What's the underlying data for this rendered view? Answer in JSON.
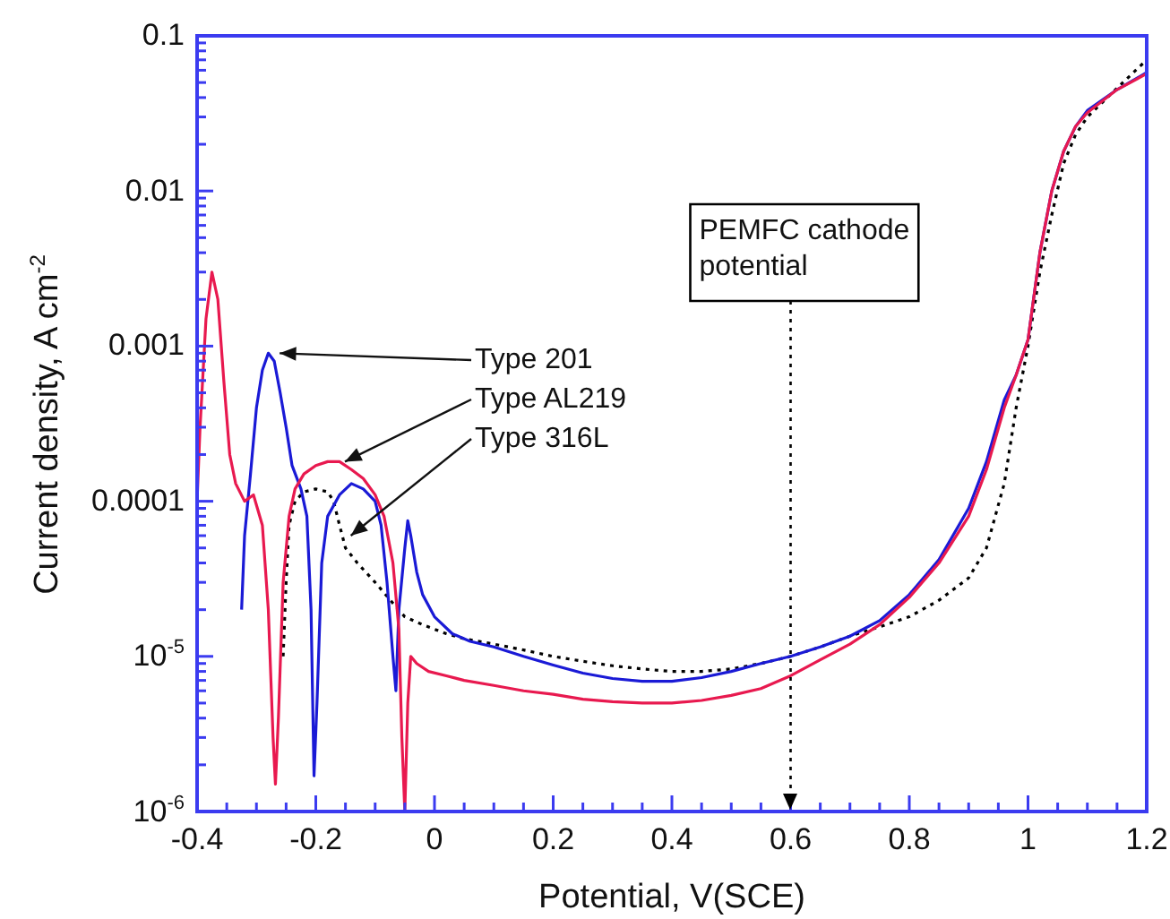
{
  "chart_data": {
    "type": "line",
    "xlabel": "Potential, V(SCE)",
    "ylabel": "Current density, A cm$^{-2}$",
    "log": "y",
    "grid": false,
    "legend": false,
    "xlim": [
      -0.4,
      1.2
    ],
    "ylim": [
      1e-06,
      0.1
    ],
    "xticks": [
      -0.4,
      {
        "value": -0.35,
        "label": null
      },
      {
        "value": -0.3,
        "label": null
      },
      {
        "value": -0.25,
        "label": null
      },
      -0.2,
      {
        "value": -0.15,
        "label": null
      },
      {
        "value": -0.1,
        "label": null
      },
      {
        "value": -0.05,
        "label": null
      },
      0,
      {
        "value": 0.05,
        "label": null
      },
      {
        "value": 0.1,
        "label": null
      },
      {
        "value": 0.15,
        "label": null
      },
      0.2,
      {
        "value": 0.25,
        "label": null
      },
      {
        "value": 0.3,
        "label": null
      },
      {
        "value": 0.35,
        "label": null
      },
      0.4,
      {
        "value": 0.45,
        "label": null
      },
      {
        "value": 0.5,
        "label": null
      },
      {
        "value": 0.55,
        "label": null
      },
      0.6,
      {
        "value": 0.65,
        "label": null
      },
      {
        "value": 0.7,
        "label": null
      },
      {
        "value": 0.75,
        "label": null
      },
      0.8,
      {
        "value": 0.85,
        "label": null
      },
      {
        "value": 0.9,
        "label": null
      },
      {
        "value": 0.95,
        "label": null
      },
      1,
      {
        "value": 1.05,
        "label": null
      },
      {
        "value": 1.1,
        "label": null
      },
      {
        "value": 1.15,
        "label": null
      },
      1.2
    ],
    "yticks": [
      {
        "value": 1e-06,
        "label": "10$^{-6}$"
      },
      {
        "value": 2e-06,
        "label": null
      },
      {
        "value": 3e-06,
        "label": null
      },
      {
        "value": 4e-06,
        "label": null
      },
      {
        "value": 5e-06,
        "label": null
      },
      {
        "value": 6e-06,
        "label": null
      },
      {
        "value": 7e-06,
        "label": null
      },
      {
        "value": 8e-06,
        "label": null
      },
      {
        "value": 9e-06,
        "label": null
      },
      {
        "value": 1e-05,
        "label": "10$^{-5}$"
      },
      {
        "value": 2e-05,
        "label": null
      },
      {
        "value": 3e-05,
        "label": null
      },
      {
        "value": 4e-05,
        "label": null
      },
      {
        "value": 5e-05,
        "label": null
      },
      {
        "value": 6e-05,
        "label": null
      },
      {
        "value": 7e-05,
        "label": null
      },
      {
        "value": 8e-05,
        "label": null
      },
      {
        "value": 9e-05,
        "label": null
      },
      0.0001,
      {
        "value": 0.0002,
        "label": null
      },
      {
        "value": 0.0003,
        "label": null
      },
      {
        "value": 0.0004,
        "label": null
      },
      {
        "value": 0.0005,
        "label": null
      },
      {
        "value": 0.0006,
        "label": null
      },
      {
        "value": 0.0007,
        "label": null
      },
      {
        "value": 0.0008,
        "label": null
      },
      {
        "value": 0.0009,
        "label": null
      },
      0.001,
      {
        "value": 0.002,
        "label": null
      },
      {
        "value": 0.003,
        "label": null
      },
      {
        "value": 0.004,
        "label": null
      },
      {
        "value": 0.005,
        "label": null
      },
      {
        "value": 0.006,
        "label": null
      },
      {
        "value": 0.007,
        "label": null
      },
      {
        "value": 0.008,
        "label": null
      },
      {
        "value": 0.009,
        "label": null
      },
      0.01,
      {
        "value": 0.02,
        "label": null
      },
      {
        "value": 0.03,
        "label": null
      },
      {
        "value": 0.04,
        "label": null
      },
      {
        "value": 0.05,
        "label": null
      },
      {
        "value": 0.06,
        "label": null
      },
      {
        "value": 0.07,
        "label": null
      },
      {
        "value": 0.08,
        "label": null
      },
      {
        "value": 0.09,
        "label": null
      },
      0.1
    ],
    "series": [
      {
        "color": "#e8194f",
        "x": [
          -0.4,
          -0.395,
          -0.385,
          -0.375,
          -0.365,
          -0.355,
          -0.345,
          -0.335,
          -0.32,
          -0.305,
          -0.29,
          -0.28,
          -0.272,
          -0.268,
          -0.263,
          -0.255,
          -0.245,
          -0.235,
          -0.22,
          -0.2,
          -0.18,
          -0.16,
          -0.14,
          -0.12,
          -0.1,
          -0.085,
          -0.07,
          -0.06,
          -0.055,
          -0.05,
          -0.045,
          -0.04,
          -0.03,
          -0.01,
          0.02,
          0.05,
          0.1,
          0.15,
          0.2,
          0.25,
          0.3,
          0.35,
          0.4,
          0.45,
          0.5,
          0.55,
          0.6,
          0.65,
          0.7,
          0.75,
          0.8,
          0.85,
          0.9,
          0.93,
          0.96,
          0.98,
          1.0,
          1.02,
          1.04,
          1.06,
          1.08,
          1.1,
          1.15,
          1.2
        ],
        "values": [
          0.0001,
          0.0003,
          0.0015,
          0.003,
          0.002,
          0.0006,
          0.0002,
          0.00013,
          0.0001,
          0.00011,
          7e-05,
          2e-05,
          3e-06,
          1.5e-06,
          4e-06,
          3e-05,
          8e-05,
          0.00012,
          0.00015,
          0.00017,
          0.00018,
          0.00018,
          0.00016,
          0.00014,
          0.00011,
          8e-05,
          4e-05,
          1.5e-05,
          3e-06,
          1e-06,
          5e-06,
          1e-05,
          9e-06,
          8e-06,
          7.5e-06,
          7e-06,
          6.5e-06,
          6e-06,
          5.7e-06,
          5.3e-06,
          5.1e-06,
          5e-06,
          5e-06,
          5.2e-06,
          5.6e-06,
          6.2e-06,
          7.5e-06,
          9.5e-06,
          1.2e-05,
          1.6e-05,
          2.4e-05,
          4e-05,
          8e-05,
          0.00016,
          0.0004,
          0.00065,
          0.0011,
          0.004,
          0.01,
          0.018,
          0.026,
          0.032,
          0.045,
          0.057
        ]
      },
      {
        "color": "#1a1ad6",
        "x": [
          -0.325,
          -0.32,
          -0.31,
          -0.3,
          -0.29,
          -0.28,
          -0.27,
          -0.26,
          -0.25,
          -0.24,
          -0.225,
          -0.215,
          -0.208,
          -0.203,
          -0.198,
          -0.19,
          -0.18,
          -0.16,
          -0.14,
          -0.12,
          -0.1,
          -0.09,
          -0.08,
          -0.07,
          -0.065,
          -0.06,
          -0.05,
          -0.045,
          -0.04,
          -0.03,
          -0.02,
          0,
          0.03,
          0.06,
          0.1,
          0.15,
          0.2,
          0.25,
          0.3,
          0.35,
          0.4,
          0.45,
          0.5,
          0.55,
          0.6,
          0.65,
          0.7,
          0.75,
          0.8,
          0.85,
          0.9,
          0.93,
          0.96,
          0.98,
          1.0,
          1.02,
          1.04,
          1.06,
          1.08,
          1.1,
          1.15,
          1.2
        ],
        "values": [
          2e-05,
          6e-05,
          0.00015,
          0.0004,
          0.0007,
          0.0009,
          0.0008,
          0.0005,
          0.0003,
          0.00017,
          0.00012,
          8e-05,
          2e-05,
          1.7e-06,
          5e-06,
          4e-05,
          8e-05,
          0.00011,
          0.00013,
          0.00012,
          0.0001,
          7e-05,
          3e-05,
          1e-05,
          6e-06,
          2e-05,
          5e-05,
          7.5e-05,
          6e-05,
          3.5e-05,
          2.5e-05,
          1.8e-05,
          1.4e-05,
          1.25e-05,
          1.15e-05,
          1e-05,
          8.8e-06,
          7.8e-06,
          7.2e-06,
          6.9e-06,
          6.9e-06,
          7.3e-06,
          8e-06,
          9e-06,
          1e-05,
          1.15e-05,
          1.35e-05,
          1.7e-05,
          2.5e-05,
          4.2e-05,
          9e-05,
          0.00018,
          0.00045,
          0.00065,
          0.0011,
          0.004,
          0.01,
          0.018,
          0.026,
          0.033,
          0.045,
          0.058
        ]
      },
      {
        "color": "#000000",
        "line_style": "dotted",
        "x": [
          -0.255,
          -0.25,
          -0.245,
          -0.235,
          -0.22,
          -0.2,
          -0.18,
          -0.17,
          -0.16,
          -0.15,
          -0.13,
          -0.1,
          -0.07,
          -0.05,
          -0.02,
          0.02,
          0.05,
          0.1,
          0.15,
          0.2,
          0.25,
          0.3,
          0.35,
          0.4,
          0.45,
          0.5,
          0.55,
          0.6,
          0.65,
          0.7,
          0.75,
          0.8,
          0.85,
          0.9,
          0.93,
          0.96,
          0.98,
          1.0,
          1.02,
          1.04,
          1.06,
          1.08,
          1.1,
          1.15,
          1.2
        ],
        "values": [
          1e-05,
          3e-05,
          7e-05,
          0.0001,
          0.000115,
          0.00012,
          0.000115,
          0.0001,
          7e-05,
          5e-05,
          4e-05,
          3e-05,
          2.2e-05,
          1.8e-05,
          1.6e-05,
          1.4e-05,
          1.3e-05,
          1.2e-05,
          1.1e-05,
          1e-05,
          9.3e-06,
          8.7e-06,
          8.3e-06,
          8e-06,
          8e-06,
          8.3e-06,
          9e-06,
          1e-05,
          1.15e-05,
          1.35e-05,
          1.55e-05,
          1.8e-05,
          2.3e-05,
          3.2e-05,
          5e-05,
          0.00013,
          0.0004,
          0.001,
          0.003,
          0.007,
          0.015,
          0.023,
          0.03,
          0.046,
          0.07
        ]
      }
    ],
    "annotations": [
      {
        "text": "Type 201",
        "x": -0.27,
        "y": 0.0009
      },
      {
        "text": "Type AL219",
        "x": -0.16,
        "y": 0.00018
      },
      {
        "text": "Type 316L",
        "x": -0.15,
        "y": 6e-05
      }
    ],
    "ref_lines": [
      {
        "axis": "x",
        "value": 0.6,
        "label": "PEMFC cathode potential",
        "line_style": "dotted",
        "color": "#000000"
      }
    ]
  }
}
